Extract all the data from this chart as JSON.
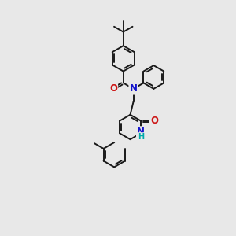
{
  "bg_color": "#e8e8e8",
  "bond_color": "#1a1a1a",
  "bond_width": 1.4,
  "N_color": "#1414cc",
  "O_color": "#cc1414",
  "H_color": "#00aaaa",
  "font_size_atom": 8.5,
  "figsize": [
    3.0,
    3.0
  ],
  "dpi": 100,
  "xlim": [
    0.0,
    8.5
  ],
  "ylim": [
    -0.5,
    10.5
  ]
}
